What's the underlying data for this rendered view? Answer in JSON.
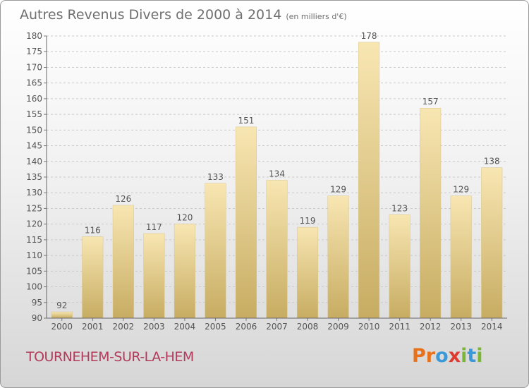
{
  "title": "Autres Revenus Divers de 2000 à 2014",
  "unit": "(en milliers d'€)",
  "commune": "TOURNEHEM-SUR-LA-HEM",
  "logo": {
    "letters": [
      "P",
      "r",
      "o",
      "x",
      "i",
      "t",
      "i"
    ],
    "colors": [
      "#e8721c",
      "#e8721c",
      "#3a9ad9",
      "#e03a2f",
      "#7cb733",
      "#3a9ad9",
      "#7cb733"
    ]
  },
  "colors": {
    "bar_light": "#f8e6b2",
    "bar_dark": "#c7ac62",
    "grid": "#c9c9c9",
    "axis_text": "#555555",
    "commune": "#b23a5a"
  },
  "chart_data": {
    "type": "bar",
    "categories": [
      "2000",
      "2001",
      "2002",
      "2003",
      "2004",
      "2005",
      "2006",
      "2007",
      "2008",
      "2009",
      "2010",
      "2011",
      "2012",
      "2013",
      "2014"
    ],
    "values": [
      92,
      116,
      126,
      117,
      120,
      133,
      151,
      134,
      119,
      129,
      178,
      123,
      157,
      129,
      138
    ],
    "ylim": [
      90,
      180
    ],
    "yticks": [
      90,
      95,
      100,
      105,
      110,
      115,
      120,
      125,
      130,
      135,
      140,
      145,
      150,
      155,
      160,
      165,
      170,
      175,
      180
    ],
    "grid": true
  }
}
